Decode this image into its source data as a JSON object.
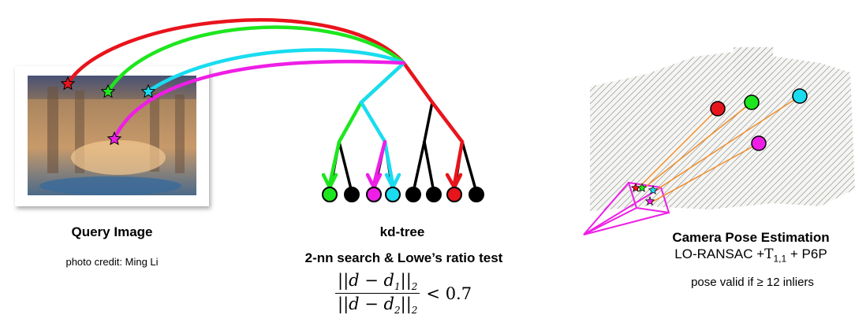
{
  "query": {
    "title": "Query Image",
    "credit": "photo credit: Ming Li"
  },
  "tree": {
    "title": "kd-tree",
    "search_label": "2-nn search & Lowe’s ratio test",
    "formula_num_a": "||d − d",
    "formula_num_sub": "1",
    "formula_num_b": "||",
    "formula_num_sub2": "2",
    "formula_den_a": "||d − d",
    "formula_den_sub": "2",
    "formula_den_b": "||",
    "formula_den_sub2": "2",
    "formula_rel": "< 0.7"
  },
  "pose": {
    "title": "Camera Pose Estimation",
    "method_a": "LO-RANSAC +",
    "method_t": "T",
    "method_t_sub": "1,1",
    "method_b": " + P6P",
    "validity": "pose valid if ≥ 12 inliers"
  },
  "colors": {
    "red": "#e8141c",
    "green": "#1ee61e",
    "cyan": "#19dcf0",
    "magenta": "#ee1ee6",
    "black": "#000000",
    "orange": "#f08c28"
  }
}
